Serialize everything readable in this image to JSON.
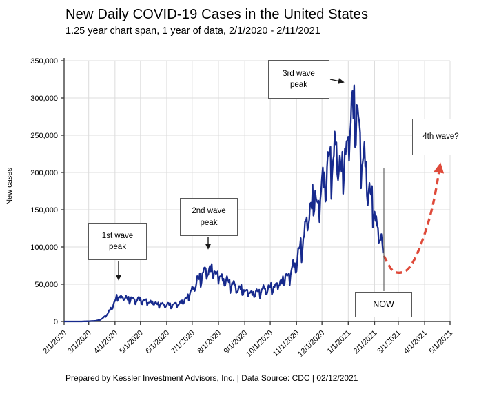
{
  "page": {
    "title": "New Daily COVID-19 Cases in the United States",
    "subtitle": "1.25 year chart span, 1 year of data, 2/1/2020 - 2/11/2021",
    "footer": "Prepared by Kessler Investment Advisors, Inc. | Data Source: CDC | 02/12/2021"
  },
  "annotations": {
    "wave1": "1st wave\npeak",
    "wave2": "2nd wave\npeak",
    "wave3": "3rd wave\npeak",
    "now": "NOW",
    "wave4": "4th wave?"
  },
  "colors": {
    "series_actual": "#172a8d",
    "series_projection": "#df4a3a",
    "grid": "#dcdcdc",
    "axis": "#404040",
    "annotation_border": "#595959",
    "now_line": "#555555",
    "arrow": "#1a1a1a",
    "text": "#000000"
  },
  "chart_data": {
    "type": "line",
    "title": "New Daily COVID-19 Cases in the United States",
    "subtitle": "1.25 year chart span, 1 year of data, 2/1/2020 - 2/11/2021",
    "xlabel": "",
    "ylabel": "New cases",
    "ylim": [
      0,
      350000
    ],
    "y_ticks": [
      0,
      50000,
      100000,
      150000,
      200000,
      250000,
      300000,
      350000
    ],
    "x_ticks": [
      "2/1/2020",
      "3/1/2020",
      "4/1/2020",
      "5/1/2020",
      "6/1/2020",
      "7/1/2020",
      "8/1/2020",
      "9/1/2020",
      "10/1/2020",
      "11/1/2020",
      "12/1/2020",
      "1/1/2021",
      "2/1/2021",
      "3/1/2021",
      "4/1/2021",
      "5/1/2021"
    ],
    "x_tick_days": [
      0,
      29,
      60,
      90,
      121,
      151,
      182,
      213,
      243,
      274,
      304,
      335,
      366,
      394,
      425,
      455
    ],
    "x_span_days": 455,
    "data_start": "2/1/2020",
    "data_end": "2/11/2021",
    "data_end_day": 376,
    "grid": true,
    "legend": "none",
    "weekly_oscillation": [
      -0.15,
      -0.08,
      0.03,
      0.08,
      0.1,
      0.04,
      0.1
    ],
    "series": [
      {
        "name": "New daily COVID-19 cases (reported, daily values oscillate weekly)",
        "style": "solid",
        "keypoints_day_value": [
          [
            0,
            0
          ],
          [
            20,
            0
          ],
          [
            29,
            300
          ],
          [
            38,
            900
          ],
          [
            45,
            3500
          ],
          [
            52,
            11000
          ],
          [
            59,
            24000
          ],
          [
            63,
            33000
          ],
          [
            70,
            31000
          ],
          [
            77,
            29500
          ],
          [
            84,
            28500
          ],
          [
            91,
            28000
          ],
          [
            98,
            26000
          ],
          [
            105,
            24500
          ],
          [
            112,
            22500
          ],
          [
            119,
            22000
          ],
          [
            126,
            21500
          ],
          [
            133,
            22500
          ],
          [
            140,
            25500
          ],
          [
            147,
            34000
          ],
          [
            154,
            47000
          ],
          [
            161,
            59000
          ],
          [
            168,
            67000
          ],
          [
            175,
            66000
          ],
          [
            182,
            60000
          ],
          [
            189,
            54000
          ],
          [
            196,
            50000
          ],
          [
            203,
            44500
          ],
          [
            210,
            41000
          ],
          [
            217,
            38500
          ],
          [
            224,
            36500
          ],
          [
            231,
            40000
          ],
          [
            238,
            42500
          ],
          [
            245,
            44000
          ],
          [
            252,
            48000
          ],
          [
            259,
            55000
          ],
          [
            266,
            62000
          ],
          [
            273,
            76000
          ],
          [
            280,
            100000
          ],
          [
            287,
            133000
          ],
          [
            294,
            163000
          ],
          [
            299,
            152000
          ],
          [
            306,
            183000
          ],
          [
            313,
            207000
          ],
          [
            320,
            222000
          ],
          [
            328,
            194000
          ],
          [
            335,
            240000
          ],
          [
            342,
            290000
          ],
          [
            349,
            235000
          ],
          [
            356,
            192000
          ],
          [
            363,
            155000
          ],
          [
            370,
            120000
          ],
          [
            376,
            95000
          ]
        ]
      },
      {
        "name": "4th wave? (hypothetical projection)",
        "style": "dashed",
        "keypoints_day_value": [
          [
            377,
            88000
          ],
          [
            386,
            70000
          ],
          [
            395,
            65500
          ],
          [
            406,
            71000
          ],
          [
            417,
            93000
          ],
          [
            428,
            128000
          ],
          [
            436,
            163000
          ],
          [
            443,
            208000
          ]
        ]
      }
    ],
    "annotations": [
      {
        "label": "1st wave peak",
        "day": 63,
        "value": 36000
      },
      {
        "label": "2nd wave peak",
        "day": 168,
        "value": 74000
      },
      {
        "label": "3rd wave peak",
        "day": 342,
        "value": 315000
      },
      {
        "label": "NOW",
        "day": 378,
        "value": null
      },
      {
        "label": "4th wave?",
        "day": 443,
        "value": 210000
      }
    ]
  }
}
